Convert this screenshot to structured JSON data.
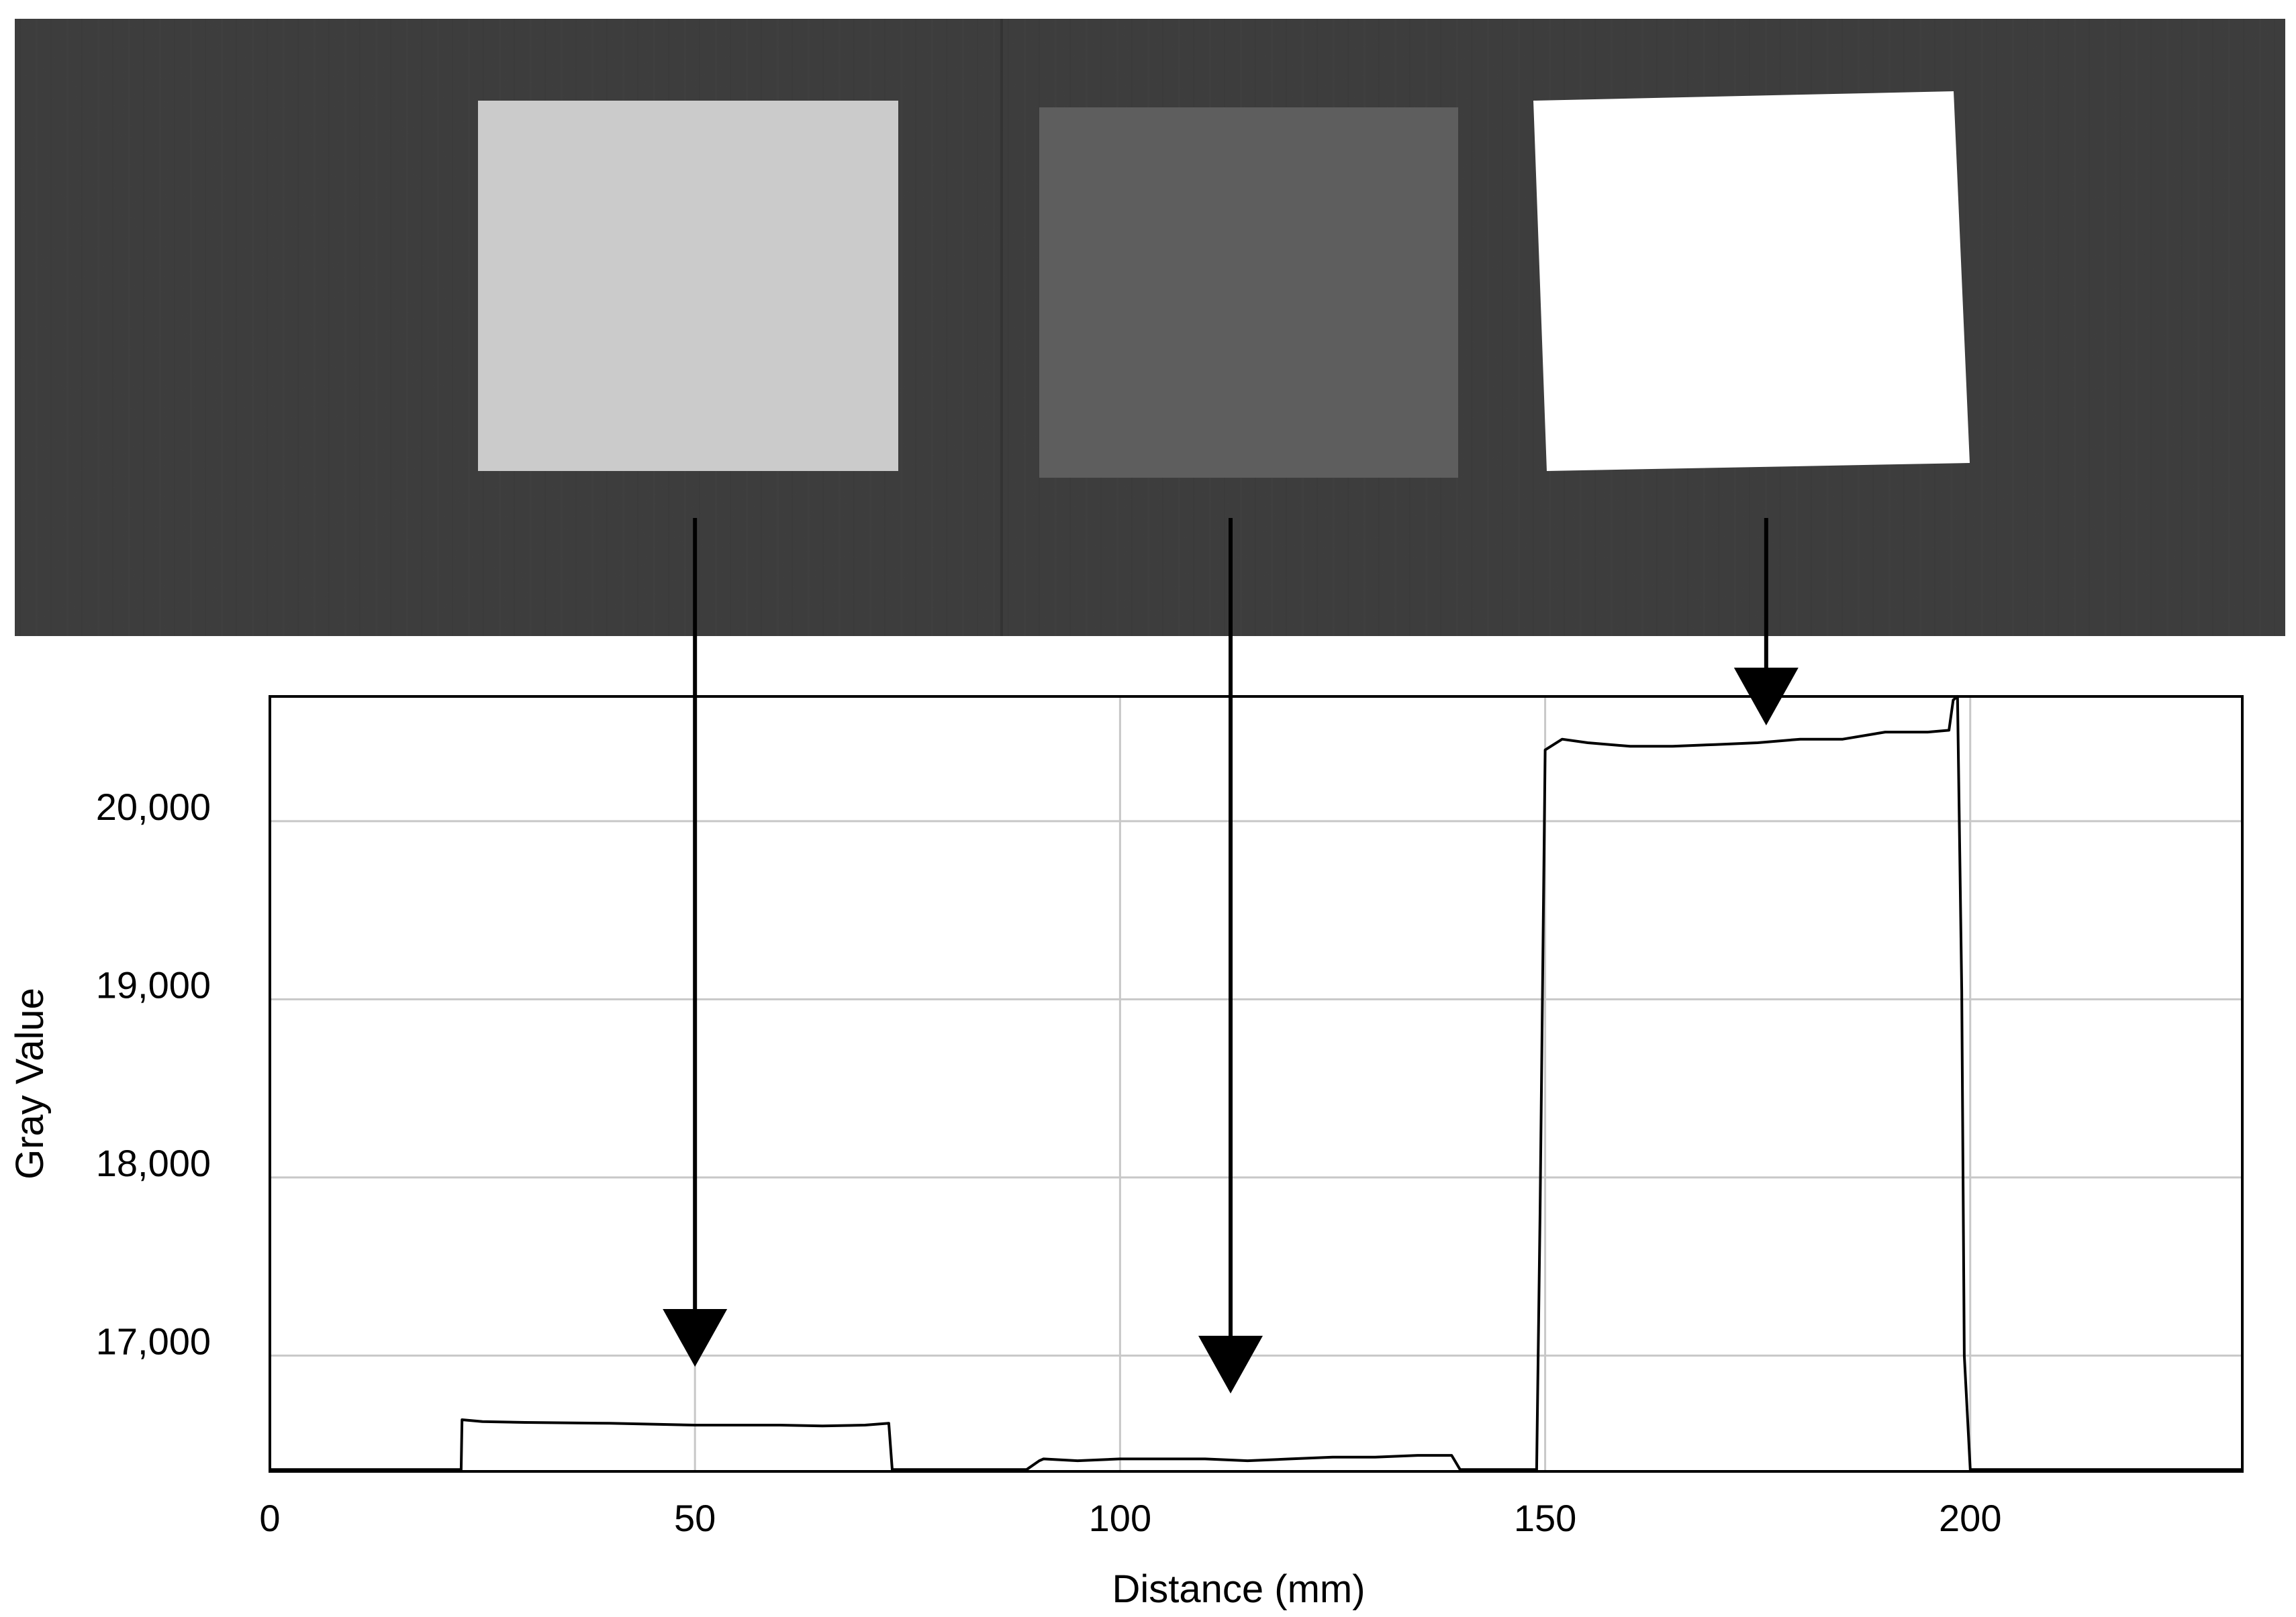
{
  "chart_data": {
    "type": "line",
    "title": "",
    "xlabel": "Distance (mm)",
    "ylabel": "Gray Value",
    "xlim": [
      0,
      232
    ],
    "ylim": [
      16350,
      20700
    ],
    "xticks": [
      0,
      50,
      100,
      150,
      200
    ],
    "xtick_labels": [
      "0",
      "50",
      "100",
      "150",
      "200"
    ],
    "yticks": [
      17000,
      18000,
      19000,
      20000
    ],
    "ytick_labels": [
      "17,000",
      "18,000",
      "19,000",
      "20,000"
    ],
    "grid": true,
    "legend": "none",
    "series": [
      {
        "color": "#000000",
        "x": [
          0,
          5,
          10,
          15,
          20,
          22.5,
          22.6,
          25,
          30,
          40,
          50,
          60,
          65,
          70,
          72.8,
          73.2,
          75,
          80,
          85,
          88,
          89,
          90.5,
          91,
          95,
          100,
          105,
          110,
          115,
          120,
          125,
          130,
          135,
          139,
          140,
          145,
          148.5,
          149,
          149.4,
          150,
          152,
          155,
          160,
          165,
          170,
          175,
          180,
          185,
          190,
          195,
          197.5,
          198,
          198.5,
          199,
          199.3,
          200,
          205,
          210,
          215,
          220,
          225,
          232
        ],
        "y": [
          16350,
          16340,
          16345,
          16350,
          16350,
          16350,
          16640,
          16630,
          16625,
          16620,
          16610,
          16610,
          16605,
          16610,
          16620,
          16350,
          16350,
          16340,
          16350,
          16330,
          16360,
          16410,
          16420,
          16410,
          16420,
          16420,
          16420,
          16410,
          16420,
          16430,
          16430,
          16440,
          16440,
          16350,
          16350,
          16350,
          16350,
          17800,
          20400,
          20460,
          20440,
          20420,
          20420,
          20430,
          20440,
          20460,
          20460,
          20500,
          20500,
          20510,
          20680,
          20700,
          19050,
          17000,
          16350,
          16350,
          16340,
          16350,
          16340,
          16350,
          16340
        ]
      }
    ],
    "annotations": {
      "arrows": [
        {
          "from_sample": "left",
          "to_x": 50,
          "to_y": 16960
        },
        {
          "from_sample": "middle",
          "to_x": 113,
          "to_y": 16810
        },
        {
          "from_sample": "right",
          "to_x": 176,
          "to_y": 20560
        }
      ]
    }
  },
  "image_panel": {
    "samples": [
      {
        "name": "left",
        "shade": "#cbcbcb",
        "x_mm": 50
      },
      {
        "name": "middle",
        "shade": "#5e5e5e",
        "x_mm": 113
      },
      {
        "name": "right",
        "shade": "#ffffff",
        "x_mm": 176
      }
    ],
    "background": "#3f3f3f"
  }
}
